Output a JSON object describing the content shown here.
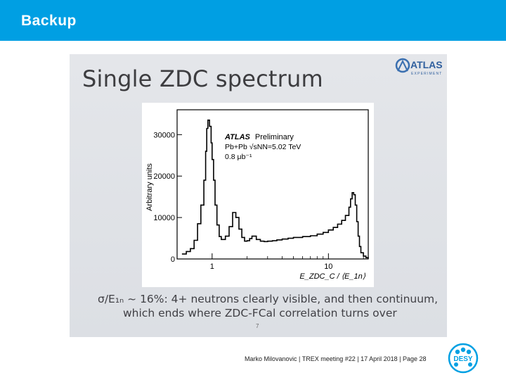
{
  "header": {
    "title": "Backup"
  },
  "slide": {
    "title": "Single ZDC spectrum",
    "atlas_logo_text": "ATLAS",
    "atlas_logo_subtext": "EXPERIMENT",
    "caption_line1": "σ/E₁ₙ ~ 16%: 4+ neutrons clearly visible, and then continuum,",
    "caption_line2": "which ends where ZDC-FCal correlation turns over",
    "number": "7"
  },
  "footer": {
    "text": "Marko Milovanovic | TREX meeting #22 | 17 April 2018 | Page 28"
  },
  "desy_logo_text": "DESY",
  "colors": {
    "header": "#009fe3",
    "desy": "#00a0e3"
  },
  "chart_data": {
    "type": "line",
    "ylabel": "Arbitrary units",
    "xlabel": "E_ZDC_C / ⟨E_1n⟩",
    "annotation": {
      "atlas": "ATLAS",
      "preliminary": "Preliminary",
      "line2": "Pb+Pb √sNN=5.02 TeV",
      "line3": "0.8 μb⁻¹"
    },
    "x_scale": "log",
    "xlim": [
      0.5,
      22
    ],
    "ylim": [
      0,
      36000
    ],
    "y_ticks": [
      {
        "label": "0",
        "value": 0
      },
      {
        "label": "10000",
        "value": 10000
      },
      {
        "label": "20000",
        "value": 20000
      },
      {
        "label": "30000",
        "value": 30000
      }
    ],
    "x_ticks": [
      {
        "label": "1",
        "value": 1
      },
      {
        "label": "10",
        "value": 10
      }
    ],
    "series": [
      {
        "x": [
          0.55,
          0.6,
          0.65,
          0.7,
          0.75,
          0.8,
          0.85,
          0.88,
          0.9,
          0.92,
          0.95,
          0.98,
          1.0,
          1.03,
          1.06,
          1.1,
          1.15,
          1.2,
          1.3,
          1.4,
          1.5,
          1.6,
          1.7,
          1.8,
          1.9,
          2.0,
          2.1,
          2.2,
          2.4,
          2.6,
          2.8,
          3.0,
          3.3,
          3.6,
          4.0,
          4.5,
          5,
          6,
          7,
          8,
          9,
          10,
          11,
          12,
          13,
          14,
          15,
          15.5,
          16,
          16.5,
          17,
          17.5,
          18,
          18.5,
          19,
          20,
          21,
          22
        ],
        "y": [
          1200,
          1800,
          2500,
          4500,
          8500,
          13000,
          19000,
          26000,
          31500,
          33500,
          32000,
          28000,
          24000,
          19000,
          13000,
          8200,
          5400,
          4700,
          5500,
          7800,
          11200,
          10000,
          7200,
          5200,
          4300,
          4400,
          4900,
          5500,
          4700,
          4300,
          4200,
          4300,
          4400,
          4600,
          4800,
          5000,
          5200,
          5400,
          5600,
          6000,
          6400,
          7000,
          7600,
          8400,
          9300,
          10500,
          12500,
          14500,
          16000,
          15500,
          13000,
          9000,
          5500,
          3000,
          1500,
          700,
          300,
          100
        ]
      }
    ]
  }
}
